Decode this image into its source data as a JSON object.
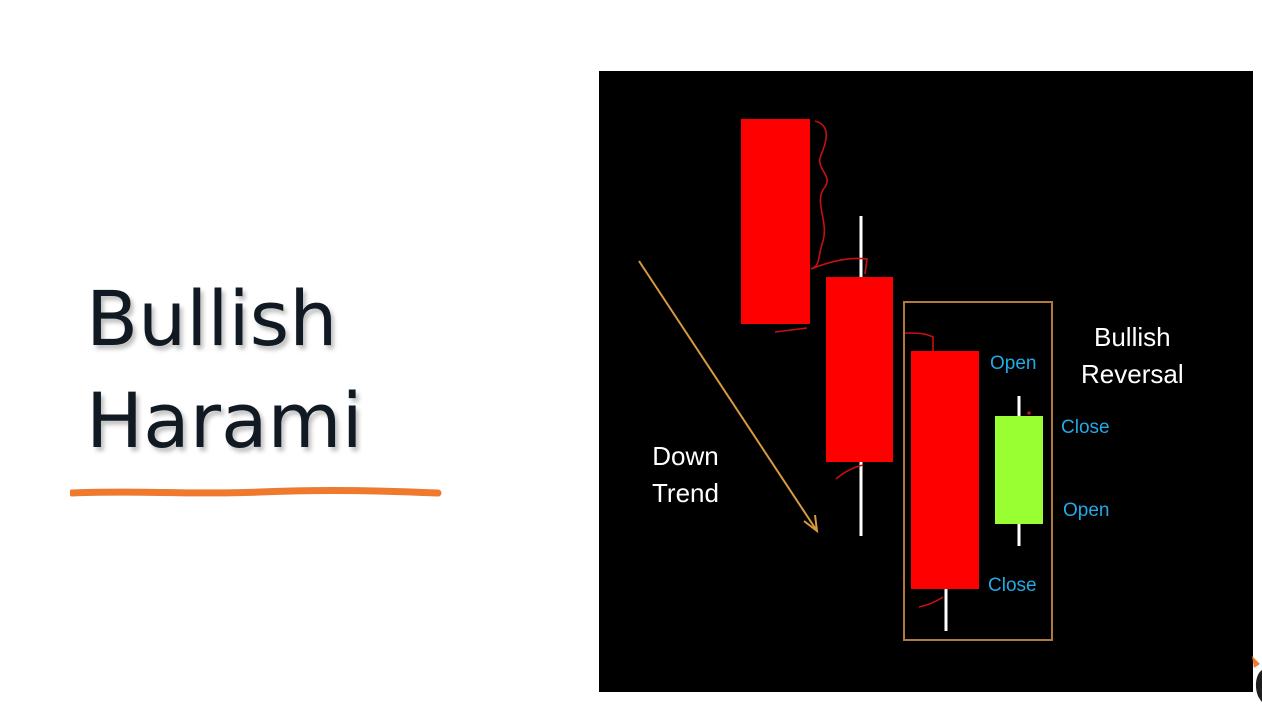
{
  "title": {
    "line1": "Bullish",
    "line2": "Harami"
  },
  "figure": {
    "trend_label": [
      "Down",
      "Trend"
    ],
    "pattern_label": [
      "Bullish",
      "Reversal"
    ],
    "bearish_candle": {
      "open_label": "Open",
      "close_label": "Close"
    },
    "bullish_candle": {
      "close_label": "Close",
      "open_label": "Open"
    }
  },
  "colors": {
    "bearish": "#ff0000",
    "bullish": "#99ff33",
    "background": "#000000",
    "highlight_box": "#b07a3a",
    "trend_arrow": "#d89a3c",
    "label_blue": "#23a9e6",
    "underline": "#ef7a2e"
  }
}
